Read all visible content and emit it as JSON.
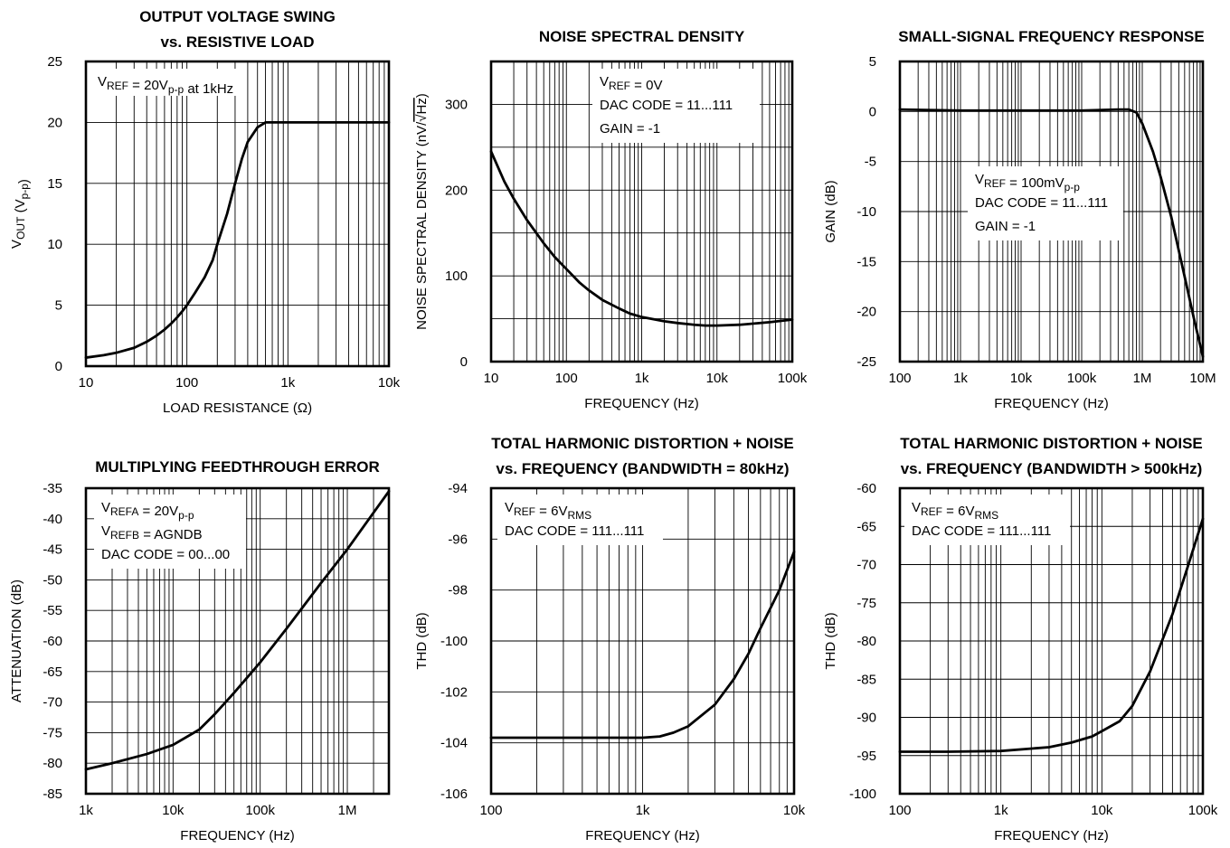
{
  "chart_data": [
    {
      "type": "line",
      "title": [
        "OUTPUT VOLTAGE SWING",
        "vs. RESISTIVE LOAD"
      ],
      "xlabel": "LOAD RESISTANCE (Ω)",
      "ylabel": [
        [
          "V",
          ""
        ],
        [
          "OUT",
          "sub"
        ],
        [
          " (V",
          ""
        ],
        [
          "p-p",
          "sub"
        ],
        [
          ")",
          ""
        ]
      ],
      "xscale": "log",
      "xlim": [
        10,
        10000
      ],
      "ylim": [
        0,
        25
      ],
      "xticks": [
        {
          "v": 10,
          "label": "10"
        },
        {
          "v": 100,
          "label": "100"
        },
        {
          "v": 1000,
          "label": "1k"
        },
        {
          "v": 10000,
          "label": "10k"
        }
      ],
      "yticks": [
        {
          "v": 0,
          "label": "0"
        },
        {
          "v": 5,
          "label": "5"
        },
        {
          "v": 10,
          "label": "10"
        },
        {
          "v": 15,
          "label": "15"
        },
        {
          "v": 20,
          "label": "20"
        },
        {
          "v": 25,
          "label": "25"
        }
      ],
      "grid": true,
      "annotation": [
        [
          [
            "V",
            ""
          ],
          [
            "REF",
            "sub"
          ],
          [
            " = 20V",
            ""
          ],
          [
            "p-p",
            "sub"
          ],
          [
            " at 1kHz",
            ""
          ]
        ]
      ],
      "series": [
        {
          "x": [
            10,
            15,
            20,
            30,
            40,
            50,
            60,
            70,
            80,
            90,
            100,
            120,
            150,
            180,
            200,
            250,
            300,
            350,
            400,
            500,
            600,
            700,
            1000,
            2000,
            5000,
            10000
          ],
          "y": [
            0.7,
            0.9,
            1.1,
            1.5,
            2.0,
            2.5,
            3.0,
            3.5,
            4.0,
            4.5,
            5.0,
            6.0,
            7.3,
            8.7,
            10.0,
            12.5,
            15.0,
            17.0,
            18.4,
            19.6,
            20.0,
            20.0,
            20.0,
            20.0,
            20.0,
            20.0
          ]
        }
      ]
    },
    {
      "type": "line",
      "title": [
        "NOISE SPECTRAL DENSITY"
      ],
      "xlabel": "FREQUENCY (Hz)",
      "ylabel": [
        [
          "NOISE SPECTRAL DENSITY (nV/",
          ""
        ],
        [
          "Hz",
          "sqrt"
        ],
        [
          ")",
          ""
        ]
      ],
      "xscale": "log",
      "xlim": [
        10,
        100000
      ],
      "ylim": [
        0,
        350
      ],
      "xticks": [
        {
          "v": 10,
          "label": "10"
        },
        {
          "v": 100,
          "label": "100"
        },
        {
          "v": 1000,
          "label": "1k"
        },
        {
          "v": 10000,
          "label": "10k"
        },
        {
          "v": 100000,
          "label": "100k"
        }
      ],
      "yticks": [
        {
          "v": 0,
          "label": "0"
        },
        {
          "v": 100,
          "label": "100"
        },
        {
          "v": 200,
          "label": "200"
        },
        {
          "v": 300,
          "label": "300"
        }
      ],
      "ygrid_step": 50,
      "grid": true,
      "annotation": [
        [
          [
            "V",
            ""
          ],
          [
            "REF",
            "sub"
          ],
          [
            " = 0V",
            ""
          ]
        ],
        [
          [
            "DAC CODE = 11...111",
            ""
          ]
        ],
        [
          [
            "GAIN = -1",
            ""
          ]
        ]
      ],
      "series": [
        {
          "x": [
            10,
            15,
            20,
            30,
            50,
            70,
            100,
            150,
            200,
            300,
            500,
            700,
            1000,
            2000,
            3000,
            5000,
            7000,
            10000,
            20000,
            50000,
            100000
          ],
          "y": [
            245,
            210,
            190,
            165,
            138,
            122,
            108,
            92,
            83,
            72,
            62,
            56,
            52,
            47,
            45,
            43,
            42,
            42,
            43,
            46,
            49
          ]
        }
      ]
    },
    {
      "type": "line",
      "title": [
        "SMALL-SIGNAL FREQUENCY RESPONSE"
      ],
      "xlabel": "FREQUENCY (Hz)",
      "ylabel": [
        [
          "GAIN (dB)",
          ""
        ]
      ],
      "xscale": "log",
      "xlim": [
        100,
        10000000
      ],
      "ylim": [
        -25,
        5
      ],
      "xticks": [
        {
          "v": 100,
          "label": "100"
        },
        {
          "v": 1000,
          "label": "1k"
        },
        {
          "v": 10000,
          "label": "10k"
        },
        {
          "v": 100000,
          "label": "100k"
        },
        {
          "v": 1000000,
          "label": "1M"
        },
        {
          "v": 10000000,
          "label": "10M"
        }
      ],
      "yticks": [
        {
          "v": -25,
          "label": "-25"
        },
        {
          "v": -20,
          "label": "-20"
        },
        {
          "v": -15,
          "label": "-15"
        },
        {
          "v": -10,
          "label": "-10"
        },
        {
          "v": -5,
          "label": "-5"
        },
        {
          "v": 0,
          "label": "0"
        },
        {
          "v": 5,
          "label": "5"
        }
      ],
      "grid": true,
      "annotation": [
        [
          [
            "V",
            ""
          ],
          [
            "REF",
            "sub"
          ],
          [
            " = 100mV",
            ""
          ],
          [
            "p-p",
            "sub"
          ]
        ],
        [
          [
            "DAC CODE = 11...111",
            ""
          ]
        ],
        [
          [
            "GAIN = -1",
            ""
          ]
        ]
      ],
      "series": [
        {
          "x": [
            100,
            1000,
            10000,
            100000,
            400000,
            600000,
            800000,
            1000000,
            1500000,
            2000000,
            3000000,
            5000000,
            7000000,
            10000000
          ],
          "y": [
            0.2,
            0.1,
            0.1,
            0.1,
            0.2,
            0.2,
            -0.1,
            -1.2,
            -4.0,
            -6.5,
            -10.5,
            -16.5,
            -20.5,
            -24.5
          ]
        }
      ]
    },
    {
      "type": "line",
      "title": [
        "MULTIPLYING FEEDTHROUGH ERROR"
      ],
      "xlabel": "FREQUENCY (Hz)",
      "ylabel": [
        [
          "ATTENUATION (dB)",
          ""
        ]
      ],
      "xscale": "log",
      "xlim": [
        1000,
        3000000
      ],
      "ylim": [
        -85,
        -35
      ],
      "xticks": [
        {
          "v": 1000,
          "label": "1k"
        },
        {
          "v": 10000,
          "label": "10k"
        },
        {
          "v": 100000,
          "label": "100k"
        },
        {
          "v": 1000000,
          "label": "1M"
        }
      ],
      "yticks": [
        {
          "v": -85,
          "label": "-85"
        },
        {
          "v": -80,
          "label": "-80"
        },
        {
          "v": -75,
          "label": "-75"
        },
        {
          "v": -70,
          "label": "-70"
        },
        {
          "v": -65,
          "label": "-65"
        },
        {
          "v": -60,
          "label": "-60"
        },
        {
          "v": -55,
          "label": "-55"
        },
        {
          "v": -50,
          "label": "-50"
        },
        {
          "v": -45,
          "label": "-45"
        },
        {
          "v": -40,
          "label": "-40"
        },
        {
          "v": -35,
          "label": "-35"
        }
      ],
      "grid": true,
      "annotation": [
        [
          [
            "V",
            ""
          ],
          [
            "REFA",
            "sub"
          ],
          [
            " = 20V",
            ""
          ],
          [
            "p-p",
            "sub"
          ]
        ],
        [
          [
            "V",
            ""
          ],
          [
            "REFB",
            "sub"
          ],
          [
            " = AGNDB",
            ""
          ]
        ],
        [
          [
            "DAC CODE = 00...00",
            ""
          ]
        ]
      ],
      "series": [
        {
          "x": [
            1000,
            2000,
            5000,
            10000,
            20000,
            30000,
            50000,
            100000,
            200000,
            500000,
            1000000,
            2000000,
            3000000
          ],
          "y": [
            -81,
            -80,
            -78.5,
            -77,
            -74.5,
            -72,
            -68.5,
            -63.5,
            -58,
            -50.5,
            -45,
            -39,
            -35.5
          ]
        }
      ]
    },
    {
      "type": "line",
      "title": [
        "TOTAL HARMONIC DISTORTION + NOISE",
        "vs. FREQUENCY (BANDWIDTH = 80kHz)"
      ],
      "xlabel": "FREQUENCY (Hz)",
      "ylabel": [
        [
          "THD (dB)",
          ""
        ]
      ],
      "xscale": "log",
      "xlim": [
        100,
        10000
      ],
      "ylim": [
        -106,
        -94
      ],
      "xticks": [
        {
          "v": 100,
          "label": "100"
        },
        {
          "v": 1000,
          "label": "1k"
        },
        {
          "v": 10000,
          "label": "10k"
        }
      ],
      "yticks": [
        {
          "v": -106,
          "label": "-106"
        },
        {
          "v": -104,
          "label": "-104"
        },
        {
          "v": -102,
          "label": "-102"
        },
        {
          "v": -100,
          "label": "-100"
        },
        {
          "v": -98,
          "label": "-98"
        },
        {
          "v": -96,
          "label": "-96"
        },
        {
          "v": -94,
          "label": "-94"
        }
      ],
      "grid": true,
      "annotation": [
        [
          [
            "V",
            ""
          ],
          [
            "REF",
            "sub"
          ],
          [
            " = 6V",
            ""
          ],
          [
            "RMS",
            "sub"
          ]
        ],
        [
          [
            "DAC CODE = 111...111",
            ""
          ]
        ]
      ],
      "series": [
        {
          "x": [
            100,
            300,
            1000,
            1300,
            1600,
            2000,
            3000,
            4000,
            5000,
            6000,
            7000,
            8000,
            10000
          ],
          "y": [
            -103.8,
            -103.8,
            -103.8,
            -103.75,
            -103.6,
            -103.35,
            -102.5,
            -101.5,
            -100.5,
            -99.5,
            -98.7,
            -98.0,
            -96.5
          ]
        }
      ]
    },
    {
      "type": "line",
      "title": [
        "TOTAL HARMONIC DISTORTION + NOISE",
        "vs. FREQUENCY (BANDWIDTH > 500kHz)"
      ],
      "xlabel": "FREQUENCY (Hz)",
      "ylabel": [
        [
          "THD (dB)",
          ""
        ]
      ],
      "xscale": "log",
      "xlim": [
        100,
        100000
      ],
      "ylim": [
        -100,
        -60
      ],
      "xticks": [
        {
          "v": 100,
          "label": "100"
        },
        {
          "v": 1000,
          "label": "1k"
        },
        {
          "v": 10000,
          "label": "10k"
        },
        {
          "v": 100000,
          "label": "100k"
        }
      ],
      "yticks": [
        {
          "v": -100,
          "label": "-100"
        },
        {
          "v": -95,
          "label": "-95"
        },
        {
          "v": -90,
          "label": "-90"
        },
        {
          "v": -85,
          "label": "-85"
        },
        {
          "v": -80,
          "label": "-80"
        },
        {
          "v": -75,
          "label": "-75"
        },
        {
          "v": -70,
          "label": "-70"
        },
        {
          "v": -65,
          "label": "-65"
        },
        {
          "v": -60,
          "label": "-60"
        }
      ],
      "grid": true,
      "annotation": [
        [
          [
            "V",
            ""
          ],
          [
            "REF",
            "sub"
          ],
          [
            " = 6V",
            ""
          ],
          [
            "RMS",
            "sub"
          ]
        ],
        [
          [
            "DAC CODE = 111...111",
            ""
          ]
        ]
      ],
      "series": [
        {
          "x": [
            100,
            300,
            1000,
            3000,
            5000,
            8000,
            10000,
            15000,
            20000,
            30000,
            50000,
            70000,
            100000
          ],
          "y": [
            -94.5,
            -94.5,
            -94.4,
            -93.9,
            -93.3,
            -92.5,
            -91.8,
            -90.5,
            -88.5,
            -84,
            -76.5,
            -70.5,
            -64
          ]
        }
      ]
    }
  ]
}
